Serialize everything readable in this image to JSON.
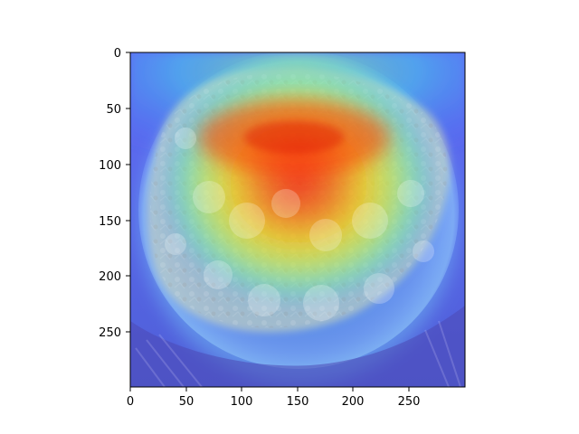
{
  "figure": {
    "image_alt": "Grad-CAM heatmap overlay on a bowl of cauliflower",
    "xlim": [
      0,
      300
    ],
    "ylim": [
      300,
      0
    ],
    "x_ticks": [
      0,
      50,
      100,
      150,
      200,
      250
    ],
    "y_ticks": [
      0,
      50,
      100,
      150,
      200,
      250
    ],
    "colormap": "jet",
    "colors": {
      "axes_frame": "#000000",
      "hot": "#ff1e00",
      "warm": "#ffd200",
      "mid": "#45e6b9",
      "cool": "#2f44ff",
      "background": "#ffffff"
    }
  }
}
